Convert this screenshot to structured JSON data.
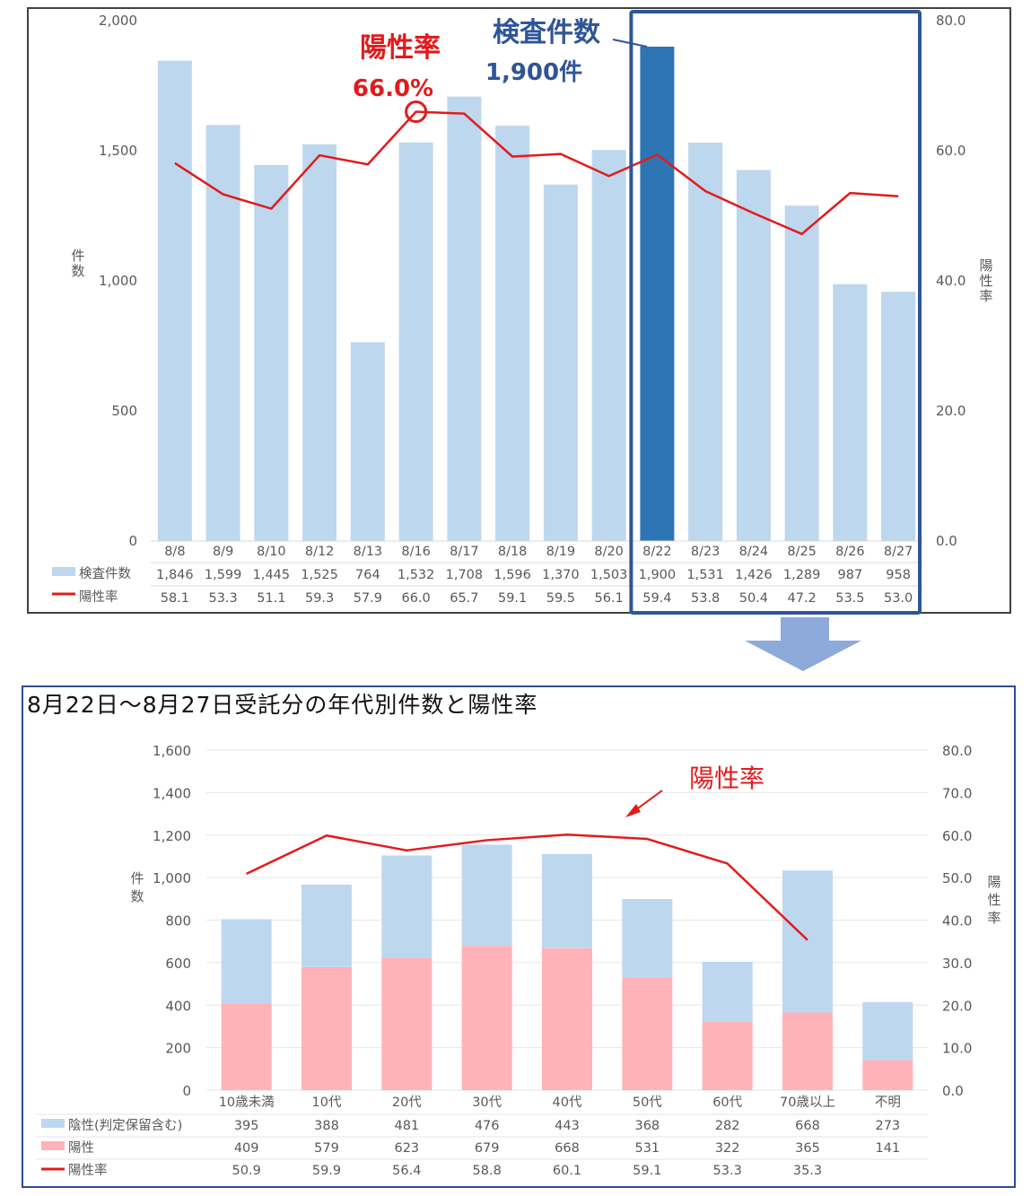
{
  "chart_data": [
    {
      "type": "bar",
      "categories": [
        "8/8",
        "8/9",
        "8/10",
        "8/12",
        "8/13",
        "8/16",
        "8/17",
        "8/18",
        "8/19",
        "8/20",
        "8/22",
        "8/23",
        "8/24",
        "8/25",
        "8/26",
        "8/27"
      ],
      "series": [
        {
          "name": "検査件数",
          "kind": "bar",
          "axis": "left",
          "values": [
            1846,
            1599,
            1445,
            1525,
            764,
            1532,
            1708,
            1596,
            1370,
            1503,
            1900,
            1531,
            1426,
            1289,
            987,
            958
          ],
          "labels": [
            "1,846",
            "1,599",
            "1,445",
            "1,525",
            "764",
            "1,532",
            "1,708",
            "1,596",
            "1,370",
            "1,503",
            "1,900",
            "1,531",
            "1,426",
            "1,289",
            "987",
            "958"
          ]
        },
        {
          "name": "陽性率",
          "kind": "line",
          "axis": "right",
          "values": [
            58.1,
            53.3,
            51.1,
            59.3,
            57.9,
            66.0,
            65.7,
            59.1,
            59.5,
            56.1,
            59.4,
            53.8,
            50.4,
            47.2,
            53.5,
            53.0
          ],
          "labels": [
            "58.1",
            "53.3",
            "51.1",
            "59.3",
            "57.9",
            "66.0",
            "65.7",
            "59.1",
            "59.5",
            "56.1",
            "59.4",
            "53.8",
            "50.4",
            "47.2",
            "53.5",
            "53.0"
          ]
        }
      ],
      "ylabel": "件数",
      "y2label": "陽性率",
      "ylim": [
        0,
        2000
      ],
      "y2lim": [
        0,
        80
      ],
      "yticks": [
        "2,000",
        "1,500",
        "1,000",
        "500",
        "0"
      ],
      "y2ticks": [
        "80.0",
        "60.0",
        "40.0",
        "20.0",
        "0.0"
      ],
      "highlight_index": 10,
      "annotations": {
        "rate_title": "陽性率",
        "rate_value": "66.0%",
        "count_title": "検査件数",
        "count_value": "1,900件"
      },
      "colors": {
        "bar": "#bdd7ee",
        "bar_highlight": "#2e75b6",
        "line": "#e31a1c",
        "annot_rate": "#e31a1c",
        "annot_count": "#2f5597",
        "frame": "#2f5597"
      }
    },
    {
      "type": "bar",
      "stacked": true,
      "title": "8月22日～8月27日受託分の年代別件数と陽性率",
      "categories": [
        "10歳未満",
        "10代",
        "20代",
        "30代",
        "40代",
        "50代",
        "60代",
        "70歳以上",
        "不明"
      ],
      "series": [
        {
          "name": "陰性(判定保留含む)",
          "kind": "bar",
          "axis": "left",
          "values": [
            395,
            388,
            481,
            476,
            443,
            368,
            282,
            668,
            273
          ]
        },
        {
          "name": "陽性",
          "kind": "bar",
          "axis": "left",
          "values": [
            409,
            579,
            623,
            679,
            668,
            531,
            322,
            365,
            141
          ]
        },
        {
          "name": "陽性率",
          "kind": "line",
          "axis": "right",
          "values": [
            50.9,
            59.9,
            56.4,
            58.8,
            60.1,
            59.1,
            53.3,
            35.3,
            null
          ],
          "labels": [
            "50.9",
            "59.9",
            "56.4",
            "58.8",
            "60.1",
            "59.1",
            "53.3",
            "35.3",
            ""
          ]
        }
      ],
      "ylabel": "件数",
      "y2label": "陽性率",
      "ylim": [
        0,
        1600
      ],
      "y2lim": [
        0,
        80
      ],
      "yticks": [
        "1,600",
        "1,400",
        "1,200",
        "1,000",
        "800",
        "600",
        "400",
        "200",
        "0"
      ],
      "y2ticks": [
        "80.0",
        "70.0",
        "60.0",
        "50.0",
        "40.0",
        "30.0",
        "20.0",
        "10.0",
        "0.0"
      ],
      "annotation": "陽性率",
      "colors": {
        "negative": "#bdd7ee",
        "positive": "#ffb3b8",
        "line": "#e31a1c",
        "annot": "#e31a1c"
      }
    }
  ]
}
